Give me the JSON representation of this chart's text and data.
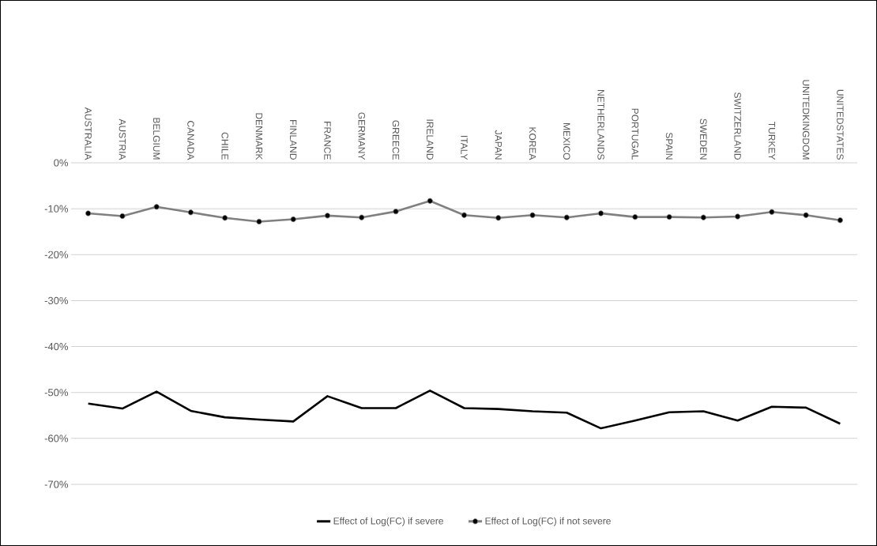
{
  "chart_data": {
    "type": "line",
    "categories": [
      "AUSTRALIA",
      "AUSTRIA",
      "BELGIUM",
      "CANADA",
      "CHILE",
      "DENMARK",
      "FINLAND",
      "FRANCE",
      "GERMANY",
      "GREECE",
      "IRELAND",
      "ITALY",
      "JAPAN",
      "KOREA",
      "MEXICO",
      "NETHERLANDS",
      "PORTUGAL",
      "SPAIN",
      "SWEDEN",
      "SWITZERLAND",
      "TURKEY",
      "UNITEDKINGDOM",
      "UNITEDSTATES"
    ],
    "series": [
      {
        "name": "Effect of Log(FC) if severe",
        "color": "#000000",
        "marker": "none",
        "values": [
          -52.4,
          -53.5,
          -49.8,
          -54.0,
          -55.4,
          -55.9,
          -56.3,
          -50.8,
          -53.4,
          -53.4,
          -49.6,
          -53.4,
          -53.6,
          -54.1,
          -54.4,
          -57.8,
          -56.1,
          -54.3,
          -54.1,
          -56.1,
          -53.1,
          -53.3,
          -56.8
        ]
      },
      {
        "name": "Effect of Log(FC) if not severe",
        "color": "#808080",
        "marker": "circle",
        "values": [
          -11.0,
          -11.6,
          -9.6,
          -10.8,
          -12.0,
          -12.8,
          -12.3,
          -11.5,
          -11.9,
          -10.6,
          -8.3,
          -11.4,
          -12.0,
          -11.4,
          -11.9,
          -11.0,
          -11.8,
          -11.8,
          -11.9,
          -11.7,
          -10.7,
          -11.4,
          -12.5
        ]
      }
    ],
    "ylim": [
      -70,
      0
    ],
    "yticks": [
      {
        "value": 0,
        "label": "0%"
      },
      {
        "value": -10,
        "label": "-10%"
      },
      {
        "value": -20,
        "label": "-20%"
      },
      {
        "value": -30,
        "label": "-30%"
      },
      {
        "value": -40,
        "label": "-40%"
      },
      {
        "value": -50,
        "label": "-50%"
      },
      {
        "value": -60,
        "label": "-60%"
      },
      {
        "value": -70,
        "label": "-70%"
      }
    ],
    "grid": "y",
    "legend": "bottom",
    "line_style": "solid"
  }
}
